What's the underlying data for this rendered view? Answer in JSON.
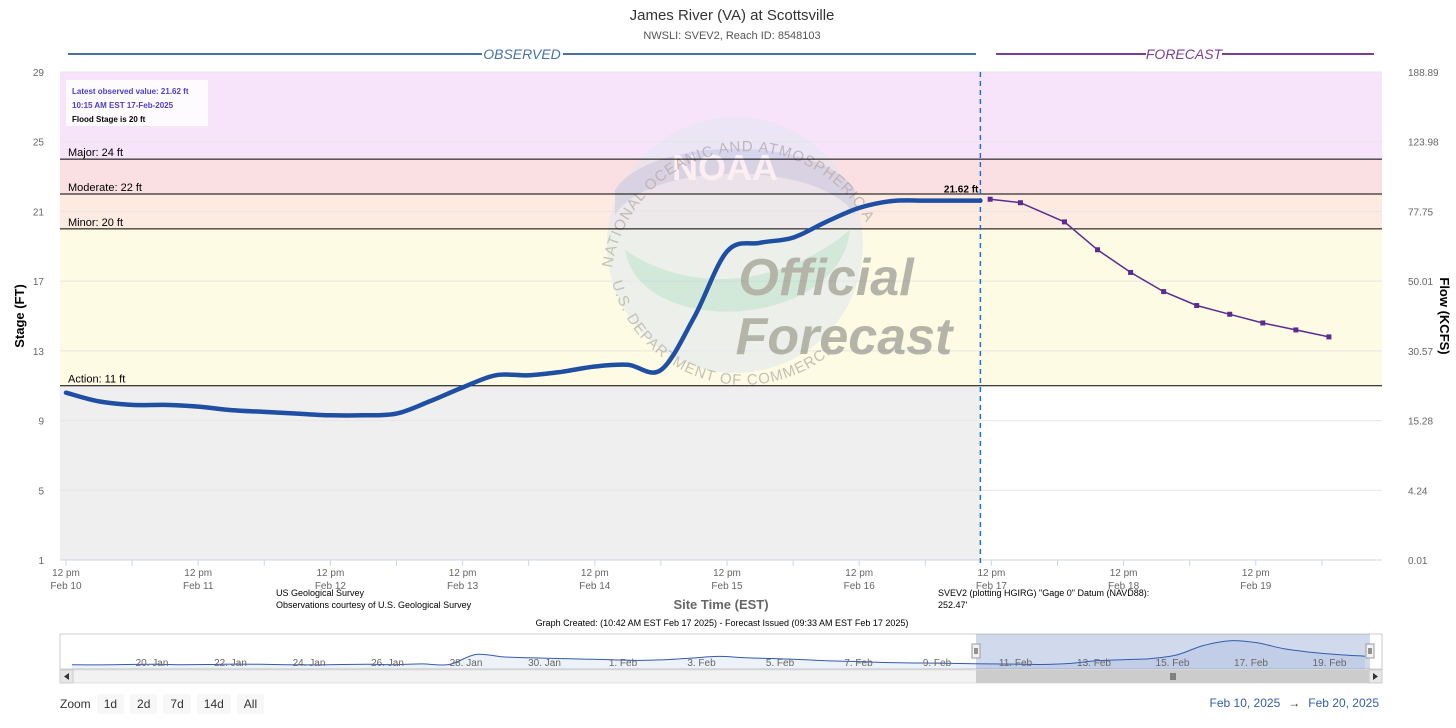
{
  "title": "James River (VA) at Scottsville",
  "subtitle": "NWSLI: SVEV2, Reach ID: 8548103",
  "colors": {
    "observed": "#1f4fa3",
    "forecast": "#5b2b8f",
    "observed_header": "#4572a7",
    "forecast_header": "#7a3d98",
    "band_major_above": "#f8e4fa",
    "band_major": "#fbe0e3",
    "band_moderate": "#fdebe2",
    "band_minor": "#fdfbe3",
    "band_action": "#efefef"
  },
  "chart_data": {
    "type": "line",
    "title": "James River (VA) at Scottsville",
    "subtitle": "NWSLI: SVEV2, Reach ID: 8548103",
    "xlabel": "Site Time (EST)",
    "ylabel": "Stage (FT)",
    "y2label": "Flow (KCFS)",
    "ylim": [
      1,
      29
    ],
    "y_ticks": [
      1,
      5,
      9,
      13,
      17,
      21,
      25,
      29
    ],
    "y2_ticks": [
      "0.01",
      "4.24",
      "15.28",
      "30.57",
      "50.01",
      "77.75",
      "123.98",
      "188.89"
    ],
    "x_ticks": [
      {
        "line1": "12 pm",
        "line2": "Feb 10"
      },
      {
        "line1": "12 pm",
        "line2": "Feb 11"
      },
      {
        "line1": "12 pm",
        "line2": "Feb 12"
      },
      {
        "line1": "12 pm",
        "line2": "Feb 13"
      },
      {
        "line1": "12 pm",
        "line2": "Feb 14"
      },
      {
        "line1": "12 pm",
        "line2": "Feb 15"
      },
      {
        "line1": "12 pm",
        "line2": "Feb 16"
      },
      {
        "line1": "12 pm",
        "line2": "Feb 17"
      },
      {
        "line1": "12 pm",
        "line2": "Feb 18"
      },
      {
        "line1": "12 pm",
        "line2": "Feb 19"
      }
    ],
    "section_labels": {
      "observed": "OBSERVED",
      "forecast": "FORECAST"
    },
    "thresholds": [
      {
        "label": "Major: 24 ft",
        "value": 24
      },
      {
        "label": "Moderate: 22 ft",
        "value": 22
      },
      {
        "label": "Minor: 20 ft",
        "value": 20
      },
      {
        "label": "Action: 11 ft",
        "value": 11
      }
    ],
    "current_marker_label": "21.62 ft",
    "info_box": {
      "line1": "Latest observed value: 21.62 ft",
      "line2": "10:15 AM EST 17-Feb-2025",
      "line3": "Flood Stage is 20 ft"
    },
    "series": [
      {
        "name": "Observed",
        "x_hours": [
          0,
          6,
          12,
          18,
          24,
          30,
          36,
          42,
          48,
          54,
          60,
          66,
          72,
          78,
          84,
          90,
          96,
          102,
          108,
          114,
          120,
          126,
          132,
          138,
          144,
          150,
          156,
          162,
          166
        ],
        "values": [
          10.6,
          10.1,
          9.9,
          9.9,
          9.8,
          9.6,
          9.5,
          9.4,
          9.3,
          9.3,
          9.4,
          10.1,
          10.9,
          11.6,
          11.6,
          11.8,
          12.1,
          12.2,
          11.9,
          14.9,
          18.7,
          19.2,
          19.5,
          20.4,
          21.2,
          21.6,
          21.62,
          21.62,
          21.62
        ]
      },
      {
        "name": "Forecast",
        "x_hours": [
          166.5,
          172,
          180,
          186,
          192,
          198,
          204,
          210,
          216,
          222,
          228
        ],
        "values": [
          21.7,
          21.5,
          20.4,
          18.8,
          17.5,
          16.4,
          15.6,
          15.1,
          14.6,
          14.2,
          13.8
        ]
      }
    ],
    "credits": {
      "left_line1": "US Geological Survey",
      "left_line2": "Observations courtesy of U.S. Geological Survey",
      "right_line1": "SVEV2 (plotting HGIRG) \"Gage 0\" Datum (NAVD88):",
      "right_line2": "252.47'",
      "bottom": "Graph Created: (10:42 AM EST Feb 17 2025) - Forecast Issued (09:33 AM EST Feb 17 2025)"
    },
    "watermark": {
      "arc_top": "NATIONAL OCEANIC AND ATMOSPHERIC ADMINISTRATION",
      "arc_bottom": "U.S. DEPARTMENT OF COMMERCE",
      "logo": "NOAA",
      "line1": "Official",
      "line2": "Forecast"
    },
    "navigator": {
      "labels": [
        "20. Jan",
        "22. Jan",
        "24. Jan",
        "26. Jan",
        "28. Jan",
        "30. Jan",
        "1. Feb",
        "3. Feb",
        "5. Feb",
        "7. Feb",
        "9. Feb",
        "11. Feb",
        "13. Feb",
        "15. Feb",
        "17. Feb",
        "19. Feb"
      ],
      "values": [
        9.2,
        9.1,
        9.3,
        9.4,
        9.2,
        9.3,
        9.5,
        9.4,
        9.2,
        9.1,
        9.3,
        9.4,
        9.2,
        9.6,
        9.3,
        14.5,
        13.2,
        12.8,
        12.4,
        12.1,
        11.8,
        11.4,
        11.8,
        12.6,
        13.5,
        12.8,
        12.4,
        11.9,
        11.2,
        10.9,
        10.4,
        10.1,
        10.0,
        9.8,
        9.6,
        9.5,
        9.3,
        9.8,
        11.2,
        11.8,
        12.3,
        14.2,
        19.1,
        21.6,
        20.5,
        17.4,
        15.6,
        14.4,
        13.6
      ]
    }
  },
  "zoom": {
    "label": "Zoom",
    "buttons": [
      "1d",
      "2d",
      "7d",
      "14d",
      "All"
    ]
  },
  "range": {
    "from": "Feb 10, 2025",
    "arrow": "→",
    "to": "Feb 20, 2025"
  }
}
